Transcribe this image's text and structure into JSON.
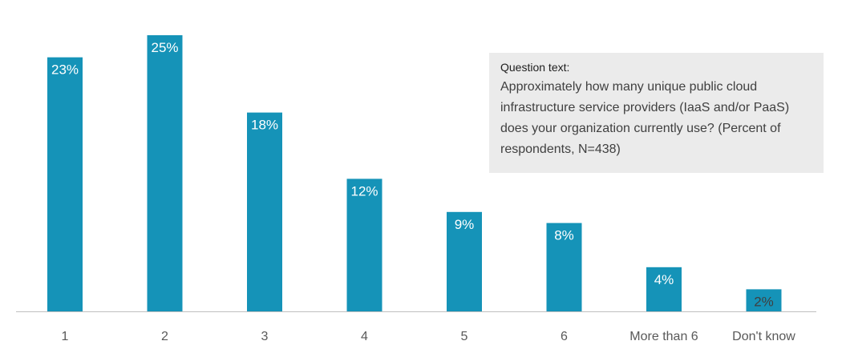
{
  "colors": {
    "bar": "#1593b8",
    "axis": "#bfbfbf",
    "label_inside": "#ffffff",
    "label_small": "#3f3f3f",
    "note_bg": "#ebebeb"
  },
  "note": {
    "heading": "Question text:",
    "body": "Approximately how many unique public cloud infrastructure service providers (IaaS and/or PaaS) does your organization currently use? (Percent of respondents, N=438)"
  },
  "chart_data": {
    "type": "bar",
    "categories": [
      "1",
      "2",
      "3",
      "4",
      "5",
      "6",
      "More than 6",
      "Don't know"
    ],
    "values": [
      23,
      25,
      18,
      12,
      9,
      8,
      4,
      2
    ],
    "data_labels": [
      "23%",
      "25%",
      "18%",
      "12%",
      "9%",
      "8%",
      "4%",
      "2%"
    ],
    "unit": "%",
    "title": "",
    "xlabel": "",
    "ylabel": "",
    "ylim": [
      0,
      25
    ],
    "grid": false,
    "legend": "none"
  }
}
